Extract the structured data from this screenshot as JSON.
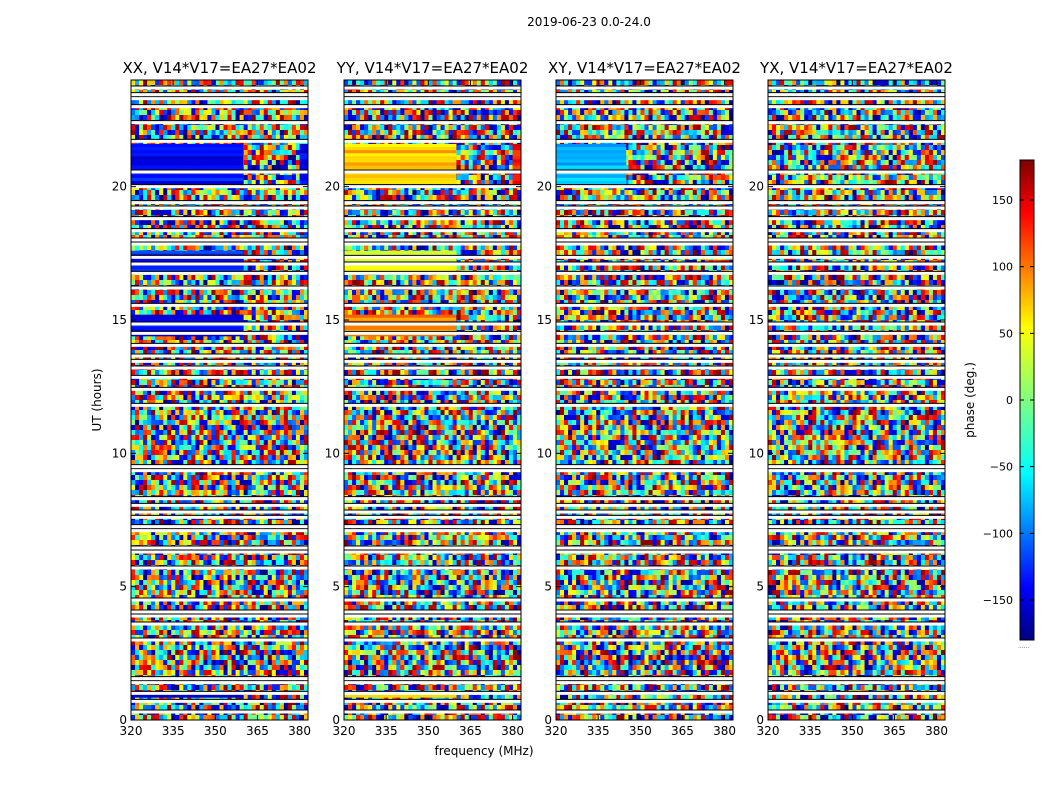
{
  "figure": {
    "suptitle": "2019-06-23 0.0-24.0",
    "xlabel": "frequency (MHz)",
    "ylabel": "UT (hours)",
    "colorbar_label": "phase (deg.)",
    "colorbar_min": -180,
    "colorbar_max": 180,
    "colorbar_ticks": [
      150,
      100,
      50,
      0,
      -50,
      -100,
      -150
    ],
    "colorbar_tick_labels": [
      "150",
      "100",
      "50",
      "0",
      "−50",
      "−100",
      "−150"
    ],
    "colorbar_footnote": "......"
  },
  "chart_data": {
    "type": "heatmap",
    "colormap": "jet",
    "x_range_mhz": [
      320,
      383
    ],
    "y_range_hours": [
      0,
      24
    ],
    "x_ticks": [
      320,
      335,
      350,
      365,
      380
    ],
    "y_ticks": [
      0,
      5,
      10,
      15,
      20
    ],
    "panels": [
      {
        "title": "XX, V14*V17=EA27*EA02",
        "mode": "XX"
      },
      {
        "title": "YY, V14*V17=EA27*EA02",
        "mode": "YY"
      },
      {
        "title": "XY, V14*V17=EA27*EA02",
        "mode": "XY"
      },
      {
        "title": "YX, V14*V17=EA27*EA02",
        "mode": "YX"
      }
    ],
    "flagged_rows_hours": [
      0.3,
      0.7,
      1.0,
      1.4,
      1.55,
      3.0,
      3.6,
      3.9,
      4.05,
      4.5,
      5.7,
      6.3,
      6.45,
      7.1,
      7.25,
      7.6,
      7.8,
      8.05,
      8.3,
      9.35,
      9.5,
      11.8,
      12.4,
      12.85,
      13.2,
      13.45,
      13.65,
      14.05,
      14.5,
      14.85,
      15.55,
      16.2,
      16.75,
      17.1,
      17.35,
      17.85,
      18.0,
      18.35,
      18.8,
      19.2,
      19.4,
      20.0,
      20.55,
      21.7,
      22.4,
      23.0,
      23.3,
      23.45,
      23.7
    ],
    "coherent_bands": [
      {
        "panel": "XX",
        "y": [
          20.1,
          21.6
        ],
        "x": [
          320,
          360
        ],
        "phase_deg": -135
      },
      {
        "panel": "XX",
        "y": [
          20.1,
          21.6
        ],
        "x": [
          380,
          383
        ],
        "phase_deg": -140
      },
      {
        "panel": "XX",
        "y": [
          16.8,
          17.6
        ],
        "x": [
          320,
          360
        ],
        "phase_deg": -125
      },
      {
        "panel": "XX",
        "y": [
          14.4,
          15.2
        ],
        "x": [
          320,
          360
        ],
        "phase_deg": -135
      },
      {
        "panel": "XX",
        "y": [
          0.85,
          1.05
        ],
        "x": [
          320,
          360
        ],
        "phase_deg": -150
      },
      {
        "panel": "YY",
        "y": [
          20.1,
          21.6
        ],
        "x": [
          320,
          360
        ],
        "phase_deg": 65
      },
      {
        "panel": "YY",
        "y": [
          20.1,
          21.6
        ],
        "x": [
          380,
          383
        ],
        "phase_deg": 130
      },
      {
        "panel": "YY",
        "y": [
          16.8,
          17.6
        ],
        "x": [
          320,
          360
        ],
        "phase_deg": 40
      },
      {
        "panel": "YY",
        "y": [
          14.4,
          15.2
        ],
        "x": [
          320,
          360
        ],
        "phase_deg": 85
      },
      {
        "panel": "YY",
        "y": [
          0.85,
          1.05
        ],
        "x": [
          320,
          360
        ],
        "phase_deg": 70
      },
      {
        "panel": "XY",
        "y": [
          20.1,
          21.6
        ],
        "x": [
          320,
          345
        ],
        "phase_deg": -70
      }
    ]
  }
}
